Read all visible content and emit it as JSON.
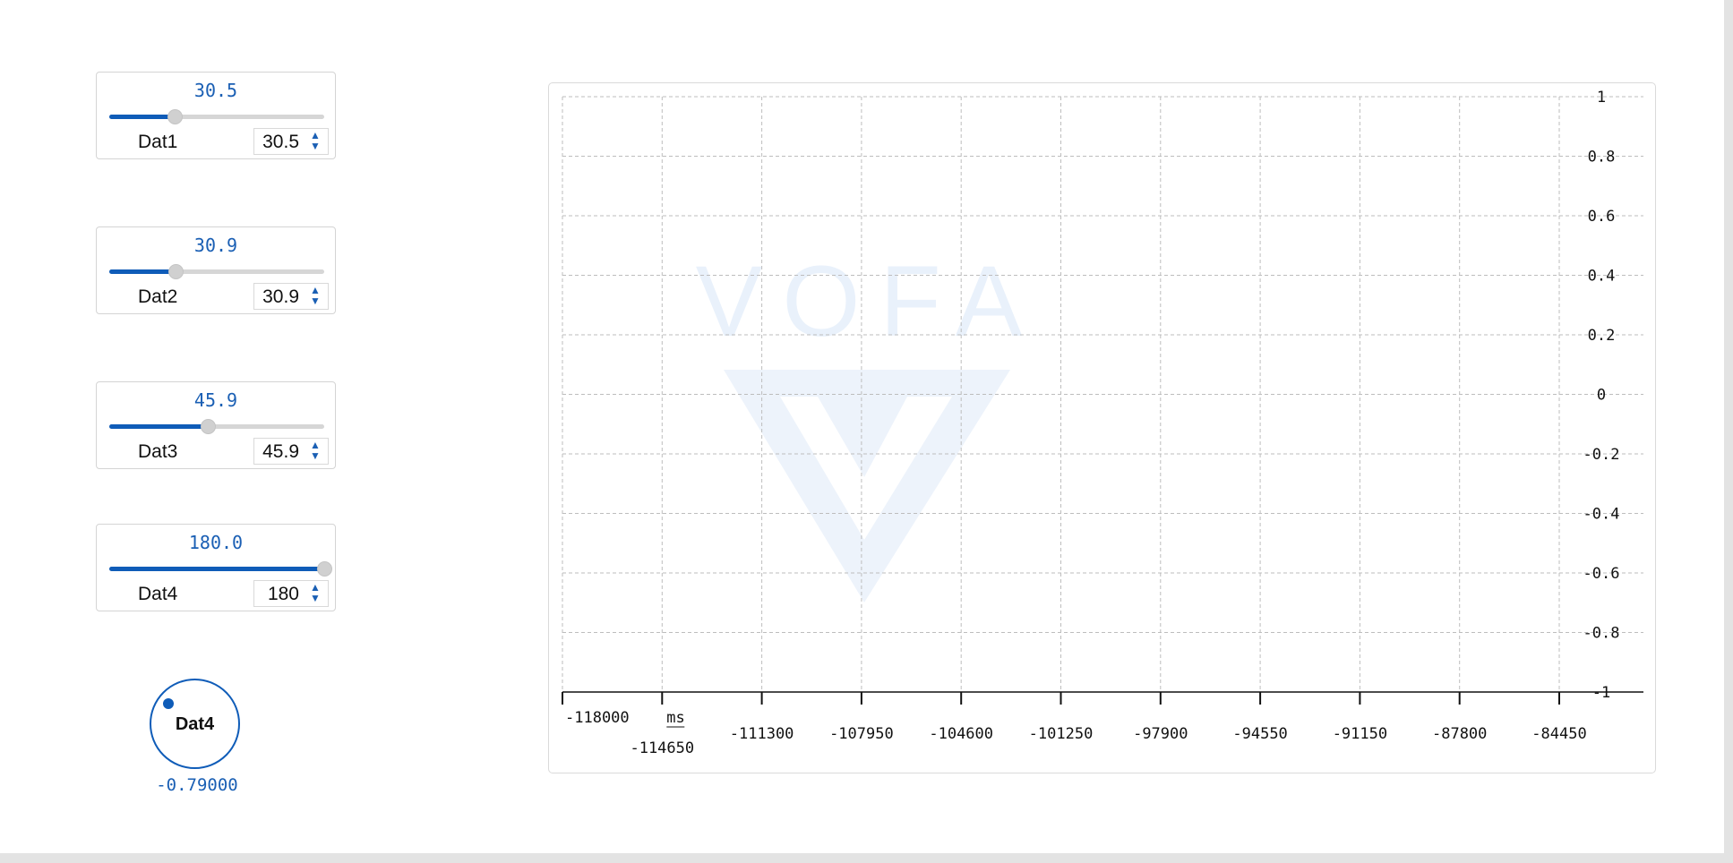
{
  "sliders": [
    {
      "name": "Dat1",
      "display": "30.5",
      "spin": "30.5",
      "fraction": 0.305
    },
    {
      "name": "Dat2",
      "display": "30.9",
      "spin": "30.9",
      "fraction": 0.309
    },
    {
      "name": "Dat3",
      "display": "45.9",
      "spin": "45.9",
      "fraction": 0.459
    },
    {
      "name": "Dat4",
      "display": "180.0",
      "spin": "180",
      "fraction": 1.0
    }
  ],
  "knob": {
    "label": "Dat4",
    "value": "-0.79000"
  },
  "chart_data": {
    "type": "line",
    "watermark": "VOFA",
    "xlabel": "ms",
    "x_ticks": [
      "-118000",
      "-114650",
      "-111300",
      "-107950",
      "-104600",
      "-101250",
      "-97900",
      "-94550",
      "-91150",
      "-87800",
      "-84450"
    ],
    "y_ticks": [
      "1",
      "0.8",
      "0.6",
      "0.4",
      "0.2",
      "0",
      "-0.2",
      "-0.4",
      "-0.6",
      "-0.8",
      "-1"
    ],
    "ylim": [
      -1,
      1
    ],
    "xlim": [
      -118000,
      -84450
    ],
    "grid": true,
    "series": []
  },
  "colors": {
    "accent": "#0f5cb8",
    "grid": "#bdbdbd",
    "watermark": "#e9f1fb"
  }
}
